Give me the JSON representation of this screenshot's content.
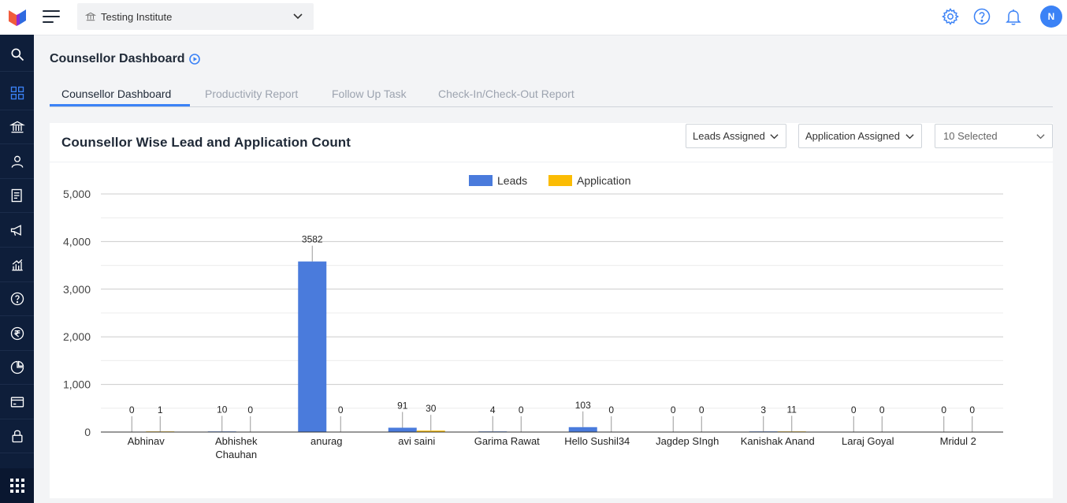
{
  "app": {
    "institute": "Testing Institute",
    "user_initial": "N"
  },
  "sidebar": {
    "items": [
      {
        "name": "search",
        "icon": "search-icon"
      },
      {
        "name": "dashboard",
        "icon": "grid-icon",
        "active": true
      },
      {
        "name": "institute",
        "icon": "bank-icon"
      },
      {
        "name": "users",
        "icon": "user-icon"
      },
      {
        "name": "forms",
        "icon": "form-icon"
      },
      {
        "name": "campaigns",
        "icon": "megaphone-icon"
      },
      {
        "name": "analytics",
        "icon": "chart-icon"
      },
      {
        "name": "help",
        "icon": "question-icon"
      },
      {
        "name": "payments",
        "icon": "rupee-icon"
      },
      {
        "name": "reports",
        "icon": "pie-icon"
      },
      {
        "name": "billing",
        "icon": "card-icon"
      },
      {
        "name": "security",
        "icon": "lock-icon"
      }
    ]
  },
  "page": {
    "title": "Counsellor Dashboard"
  },
  "tabs": [
    {
      "label": "Counsellor Dashboard",
      "active": true
    },
    {
      "label": "Productivity Report",
      "active": false
    },
    {
      "label": "Follow Up Task",
      "active": false
    },
    {
      "label": "Check-In/Check-Out Report",
      "active": false
    }
  ],
  "card": {
    "title": "Counsellor Wise Lead and Application Count",
    "filters": {
      "leads": "Leads Assigned",
      "applications": "Application Assigned",
      "counsellors": "10 Selected"
    }
  },
  "colors": {
    "leads": "#4a7bdc",
    "application": "#fbbc04",
    "accent": "#3b82f6"
  },
  "chart_data": {
    "type": "bar",
    "title": "",
    "legend": [
      "Leads",
      "Application"
    ],
    "categories": [
      "Abhinav",
      "Abhishek Chauhan",
      "anurag",
      "avi saini",
      "Garima Rawat",
      "Hello Sushil34",
      "Jagdep SIngh",
      "Kanishak Anand",
      "Laraj Goyal",
      "Mridul 2"
    ],
    "series": [
      {
        "name": "Leads",
        "values": [
          0,
          10,
          3582,
          91,
          4,
          103,
          0,
          3,
          0,
          0
        ]
      },
      {
        "name": "Application",
        "values": [
          1,
          0,
          0,
          30,
          0,
          0,
          0,
          11,
          0,
          0
        ]
      }
    ],
    "ylim": [
      0,
      5000
    ],
    "yticks": [
      "0",
      "1,000",
      "2,000",
      "3,000",
      "4,000",
      "5,000"
    ],
    "grid": true,
    "legend_position": "top-center"
  }
}
